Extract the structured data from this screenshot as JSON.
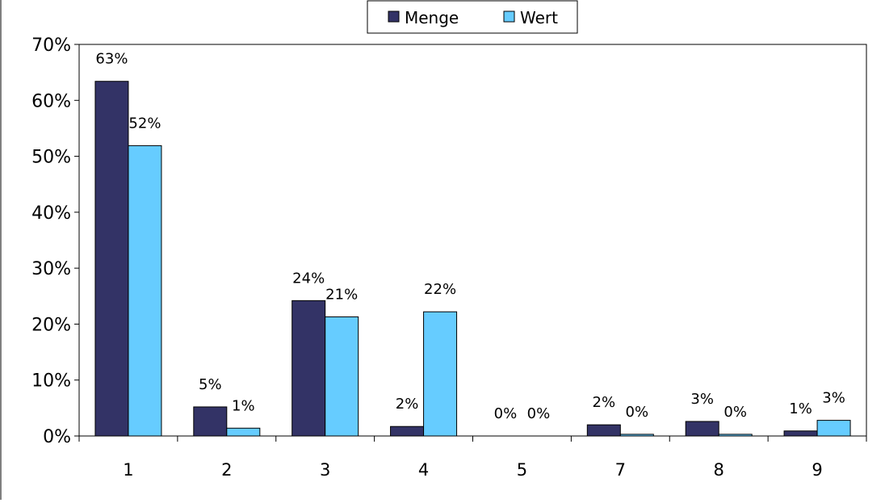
{
  "chart_data": {
    "type": "bar",
    "categories": [
      "1",
      "2",
      "3",
      "4",
      "5",
      "7",
      "8",
      "9"
    ],
    "series": [
      {
        "name": "Menge",
        "values": [
          63.4,
          5.2,
          24.2,
          1.7,
          0.0,
          2.0,
          2.6,
          0.9
        ],
        "labels": [
          "63%",
          "5%",
          "24%",
          "2%",
          "0%",
          "2%",
          "3%",
          "1%"
        ]
      },
      {
        "name": "Wert",
        "values": [
          51.9,
          1.4,
          21.3,
          22.2,
          0.0,
          0.3,
          0.3,
          2.8
        ],
        "labels": [
          "52%",
          "1%",
          "21%",
          "22%",
          "0%",
          "0%",
          "0%",
          "3%"
        ]
      }
    ],
    "ylim": [
      0,
      70
    ],
    "yticks": [
      "0%",
      "10%",
      "20%",
      "30%",
      "40%",
      "50%",
      "60%",
      "70%"
    ],
    "title": "",
    "xlabel": "",
    "ylabel": "",
    "grid": false,
    "legend": "top-center",
    "colors": {
      "Menge": "#333366",
      "Wert": "#66ccff"
    }
  }
}
